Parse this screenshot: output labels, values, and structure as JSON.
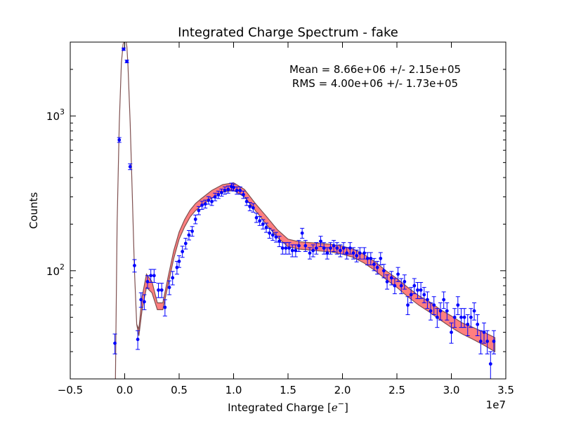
{
  "chart_data": {
    "type": "scatter",
    "title": "Integrated Charge Spectrum - fake",
    "xlabel": "Integrated Charge [",
    "xlabel_math": "e",
    "xlabel_sup": "−",
    "xlabel_end": "]",
    "ylabel": "Counts",
    "x_offset_label": "1e7",
    "yscale": "log",
    "xlim": [
      -0.5,
      3.5
    ],
    "ylim": [
      20,
      3000
    ],
    "grid": false,
    "x_ticks": [
      -0.5,
      0.0,
      0.5,
      1.0,
      1.5,
      2.0,
      2.5,
      3.0,
      3.5
    ],
    "x_tick_labels": [
      "−0.5",
      "0.0",
      "0.5",
      "1.0",
      "1.5",
      "2.0",
      "2.5",
      "3.0",
      "3.5"
    ],
    "y_ticks": [
      100,
      1000
    ],
    "y_tick_label_base": "10",
    "y_tick_label_exps": [
      "2",
      "3"
    ],
    "annotations": [
      "Mean = 8.66e+06 +/- 2.15e+05",
      "RMS = 4.00e+06 +/- 1.73e+05"
    ],
    "colors": {
      "points": "#0000ff",
      "band_fill": "#ff7f7f",
      "band_edge": "#7f5050"
    },
    "band": {
      "x": [
        -0.09,
        -0.07,
        -0.05,
        -0.03,
        -0.015,
        0.0,
        0.01,
        0.02,
        0.03,
        0.05,
        0.07,
        0.09,
        0.11,
        0.13,
        0.16,
        0.2,
        0.25,
        0.3,
        0.35,
        0.4,
        0.45,
        0.5,
        0.55,
        0.6,
        0.65,
        0.7,
        0.8,
        0.9,
        1.0,
        1.1,
        1.2,
        1.3,
        1.4,
        1.5,
        1.6,
        1.7,
        1.8,
        1.9,
        2.0,
        2.1,
        2.2,
        2.3,
        2.4,
        2.5,
        2.6,
        2.7,
        2.8,
        2.9,
        3.0,
        3.1,
        3.2,
        3.3,
        3.4
      ],
      "lower": [
        10,
        200,
        900,
        2200,
        2900,
        3100,
        3100,
        2800,
        2100,
        900,
        300,
        100,
        45,
        38,
        56,
        78,
        72,
        56,
        56,
        82,
        120,
        160,
        192,
        222,
        245,
        262,
        295,
        322,
        330,
        300,
        245,
        200,
        165,
        143,
        138,
        136,
        134,
        132,
        128,
        122,
        112,
        100,
        88,
        78,
        68,
        60,
        54,
        48,
        43,
        39,
        36,
        33,
        30
      ],
      "upper": [
        10,
        200,
        900,
        2200,
        2900,
        3100,
        3100,
        2800,
        2100,
        900,
        300,
        100,
        45,
        42,
        68,
        95,
        85,
        62,
        62,
        92,
        135,
        178,
        214,
        246,
        272,
        291,
        330,
        360,
        370,
        335,
        272,
        225,
        185,
        160,
        154,
        152,
        150,
        148,
        144,
        138,
        127,
        114,
        100,
        89,
        78,
        69,
        63,
        56,
        51,
        46,
        43,
        40,
        37
      ]
    },
    "points": {
      "x": [
        -0.09,
        -0.05,
        -0.01,
        0.02,
        0.05,
        0.09,
        0.12,
        0.15,
        0.18,
        0.21,
        0.24,
        0.27,
        0.31,
        0.34,
        0.37,
        0.41,
        0.44,
        0.48,
        0.5,
        0.53,
        0.56,
        0.59,
        0.62,
        0.65,
        0.68,
        0.71,
        0.74,
        0.77,
        0.8,
        0.83,
        0.86,
        0.89,
        0.92,
        0.95,
        0.98,
        1.0,
        1.03,
        1.06,
        1.09,
        1.12,
        1.15,
        1.18,
        1.21,
        1.24,
        1.27,
        1.3,
        1.33,
        1.36,
        1.39,
        1.42,
        1.45,
        1.48,
        1.51,
        1.54,
        1.57,
        1.6,
        1.63,
        1.66,
        1.7,
        1.73,
        1.76,
        1.8,
        1.83,
        1.86,
        1.89,
        1.92,
        1.95,
        1.98,
        2.01,
        2.04,
        2.07,
        2.1,
        2.13,
        2.16,
        2.2,
        2.23,
        2.26,
        2.29,
        2.32,
        2.35,
        2.38,
        2.41,
        2.45,
        2.48,
        2.51,
        2.54,
        2.57,
        2.6,
        2.63,
        2.66,
        2.69,
        2.72,
        2.75,
        2.78,
        2.81,
        2.84,
        2.87,
        2.9,
        2.93,
        2.96,
        3.0,
        3.03,
        3.06,
        3.09,
        3.12,
        3.15,
        3.18,
        3.21,
        3.24,
        3.27,
        3.3,
        3.33,
        3.36,
        3.39
      ],
      "y": [
        34,
        700,
        2700,
        2250,
        470,
        108,
        36,
        65,
        63,
        85,
        93,
        93,
        75,
        75,
        58,
        78,
        90,
        105,
        115,
        133,
        150,
        170,
        180,
        215,
        245,
        265,
        270,
        285,
        280,
        300,
        310,
        320,
        330,
        335,
        350,
        345,
        330,
        330,
        310,
        280,
        260,
        255,
        220,
        210,
        200,
        190,
        175,
        170,
        165,
        155,
        140,
        140,
        140,
        135,
        135,
        145,
        175,
        145,
        130,
        135,
        140,
        155,
        140,
        130,
        140,
        145,
        140,
        135,
        140,
        130,
        140,
        130,
        125,
        130,
        130,
        120,
        120,
        110,
        105,
        120,
        100,
        85,
        90,
        80,
        95,
        80,
        85,
        60,
        70,
        80,
        75,
        75,
        70,
        65,
        55,
        60,
        50,
        55,
        65,
        55,
        40,
        50,
        60,
        50,
        50,
        45,
        50,
        55,
        45,
        35,
        40,
        35,
        25,
        35
      ],
      "err": [
        5,
        25,
        50,
        45,
        20,
        10,
        5,
        7,
        7,
        8,
        9,
        9,
        8,
        8,
        7,
        8,
        9,
        10,
        10,
        11,
        12,
        12,
        13,
        14,
        15,
        16,
        16,
        16,
        16,
        17,
        17,
        17,
        18,
        18,
        18,
        18,
        18,
        18,
        17,
        16,
        16,
        16,
        15,
        14,
        14,
        13,
        13,
        13,
        12,
        12,
        12,
        12,
        12,
        12,
        12,
        12,
        13,
        12,
        11,
        12,
        12,
        12,
        12,
        11,
        12,
        12,
        12,
        12,
        12,
        11,
        12,
        11,
        11,
        11,
        11,
        11,
        11,
        10,
        10,
        11,
        10,
        9,
        9,
        9,
        10,
        9,
        9,
        8,
        8,
        9,
        9,
        9,
        8,
        8,
        7,
        8,
        7,
        7,
        8,
        7,
        6,
        7,
        8,
        7,
        7,
        7,
        7,
        7,
        7,
        6,
        6,
        6,
        5,
        6
      ]
    }
  }
}
